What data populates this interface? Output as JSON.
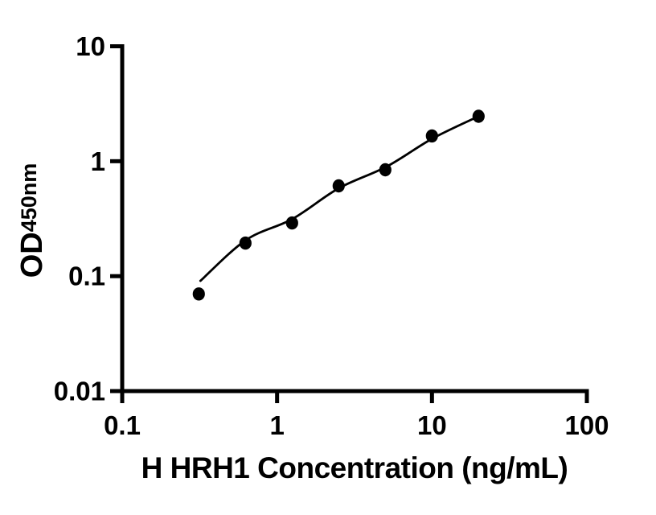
{
  "figure": {
    "background": "#ffffff",
    "axis_color": "#000000",
    "curve_color": "#000000",
    "point_color": "#000000"
  },
  "chart_data": {
    "type": "scatter",
    "title": "",
    "xlabel": "H HRH1 Concentration (ng/mL)",
    "ylabel": "OD450nm",
    "ylabel_main": "OD",
    "ylabel_sub": "450nm",
    "x_scale": "log10",
    "y_scale": "log10",
    "xlim": [
      0.1,
      100
    ],
    "ylim": [
      0.01,
      10
    ],
    "x_tick_values": [
      0.1,
      1,
      10,
      100
    ],
    "x_tick_labels": [
      "0.1",
      "1",
      "10",
      "100"
    ],
    "y_tick_values": [
      10,
      1,
      0.1,
      0.01
    ],
    "y_tick_labels": [
      "10",
      "1",
      "0.1",
      "0.01"
    ],
    "grid": false,
    "legend": null,
    "marker": "filled-black-circle",
    "series": [
      {
        "points": [
          {
            "x": 0.3125,
            "y": 0.07
          },
          {
            "x": 0.625,
            "y": 0.194
          },
          {
            "x": 1.25,
            "y": 0.29
          },
          {
            "x": 2.5,
            "y": 0.61
          },
          {
            "x": 5,
            "y": 0.842
          },
          {
            "x": 10,
            "y": 1.66
          },
          {
            "x": 20,
            "y": 2.46
          }
        ]
      }
    ],
    "fit_curve": [
      {
        "x": 0.32,
        "y": 0.091
      },
      {
        "x": 0.63,
        "y": 0.206
      },
      {
        "x": 1.26,
        "y": 0.315
      },
      {
        "x": 2.5,
        "y": 0.581
      },
      {
        "x": 5.1,
        "y": 0.898
      },
      {
        "x": 10.1,
        "y": 1.58
      },
      {
        "x": 20,
        "y": 2.46
      }
    ]
  }
}
